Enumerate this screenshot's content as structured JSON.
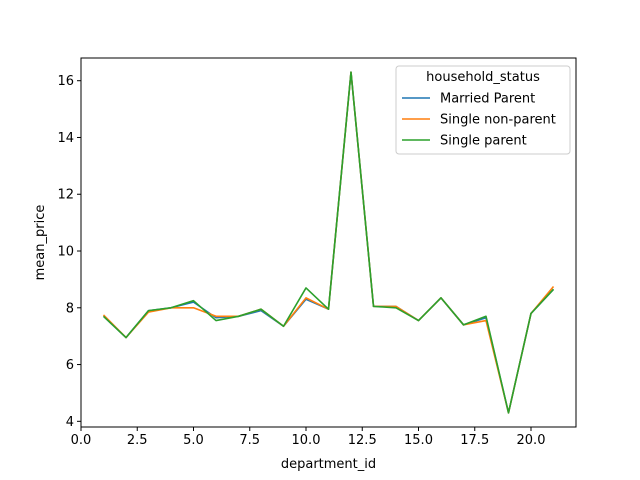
{
  "chart_data": {
    "type": "line",
    "title": "",
    "xlabel": "department_id",
    "ylabel": "mean_price",
    "xlim": [
      0,
      22
    ],
    "ylim": [
      3.8,
      16.8
    ],
    "xticks": [
      0.0,
      2.5,
      5.0,
      7.5,
      10.0,
      12.5,
      15.0,
      17.5,
      20.0
    ],
    "xtick_labels": [
      "0.0",
      "2.5",
      "5.0",
      "7.5",
      "10.0",
      "12.5",
      "15.0",
      "17.5",
      "20.0"
    ],
    "yticks": [
      4,
      6,
      8,
      10,
      12,
      14,
      16
    ],
    "ytick_labels": [
      "4",
      "6",
      "8",
      "10",
      "12",
      "14",
      "16"
    ],
    "grid": false,
    "legend": {
      "title": "household_status",
      "placement": "upper right"
    },
    "x": [
      1,
      2,
      3,
      4,
      5,
      6,
      7,
      8,
      9,
      10,
      11,
      12,
      13,
      14,
      15,
      16,
      17,
      18,
      19,
      20,
      21
    ],
    "series": [
      {
        "name": "Married Parent",
        "color": "#1f77b4",
        "values": [
          7.7,
          6.95,
          7.9,
          8.0,
          8.2,
          7.65,
          7.7,
          7.9,
          7.35,
          8.3,
          7.95,
          16.3,
          8.05,
          8.05,
          7.55,
          8.35,
          7.4,
          7.65,
          4.3,
          7.8,
          8.65
        ]
      },
      {
        "name": "Single non-parent",
        "color": "#ff7f0e",
        "values": [
          7.75,
          6.95,
          7.85,
          8.0,
          8.0,
          7.7,
          7.7,
          7.95,
          7.35,
          8.35,
          7.95,
          16.3,
          8.05,
          8.05,
          7.55,
          8.35,
          7.4,
          7.55,
          4.3,
          7.8,
          8.75
        ]
      },
      {
        "name": "Single parent",
        "color": "#2ca02c",
        "values": [
          7.7,
          6.95,
          7.9,
          8.0,
          8.25,
          7.55,
          7.7,
          7.95,
          7.35,
          8.7,
          7.95,
          16.3,
          8.05,
          8.0,
          7.55,
          8.35,
          7.4,
          7.7,
          4.3,
          7.8,
          8.65
        ]
      }
    ]
  }
}
